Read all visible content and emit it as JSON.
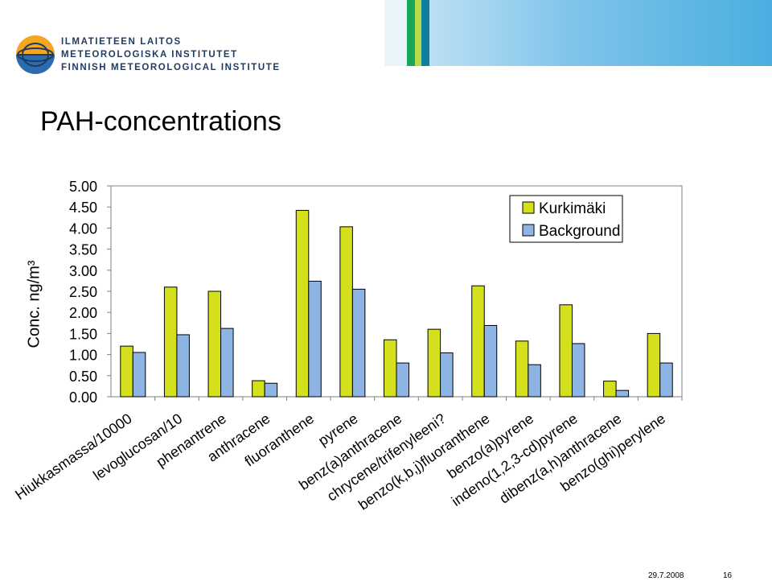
{
  "header": {
    "org_line1": "ILMATIETEEN LAITOS",
    "org_line2": "METEOROLOGISKA INSTITUTET",
    "org_line3": "FINNISH METEOROLOGICAL INSTITUTE"
  },
  "page_title": "PAH-concentrations",
  "footer": {
    "date": "29.7.2008",
    "page": "16"
  },
  "colors": {
    "kurkimaki": "#d4e01c",
    "background": "#8db4e2",
    "axis": "#808080"
  },
  "chart_data": {
    "type": "bar",
    "ylabel": "Conc. ng/m³",
    "ylim": [
      0,
      5
    ],
    "yticks": [
      "5.00",
      "4.50",
      "4.00",
      "3.50",
      "3.00",
      "2.50",
      "2.00",
      "1.50",
      "1.00",
      "0.50",
      "0.00"
    ],
    "categories": [
      "Hiukkasmassa/10000",
      "levoglucosan/10",
      "phenantrene",
      "anthracene",
      "fluoranthene",
      "pyrene",
      "benz(a)anthracene",
      "chrycene/trifenyleeni?",
      "benzo(k,b,j)fluoranthene",
      "benzo(a)pyrene",
      "indeno(1,2,3-cd)pyrene",
      "dibenz(a,h)anthracene",
      "benzo(ghi)perylene"
    ],
    "series": [
      {
        "name": "Kurkimäki",
        "color": "#d4e01c",
        "values": [
          1.2,
          2.6,
          2.5,
          0.38,
          4.42,
          4.03,
          1.35,
          1.6,
          2.63,
          1.32,
          2.18,
          0.37,
          1.5
        ]
      },
      {
        "name": "Background",
        "color": "#8db4e2",
        "values": [
          1.05,
          1.47,
          1.62,
          0.32,
          2.74,
          2.55,
          0.8,
          1.04,
          1.69,
          0.76,
          1.26,
          0.15,
          0.8
        ]
      }
    ],
    "legend_position": "top-right",
    "grid": false
  }
}
